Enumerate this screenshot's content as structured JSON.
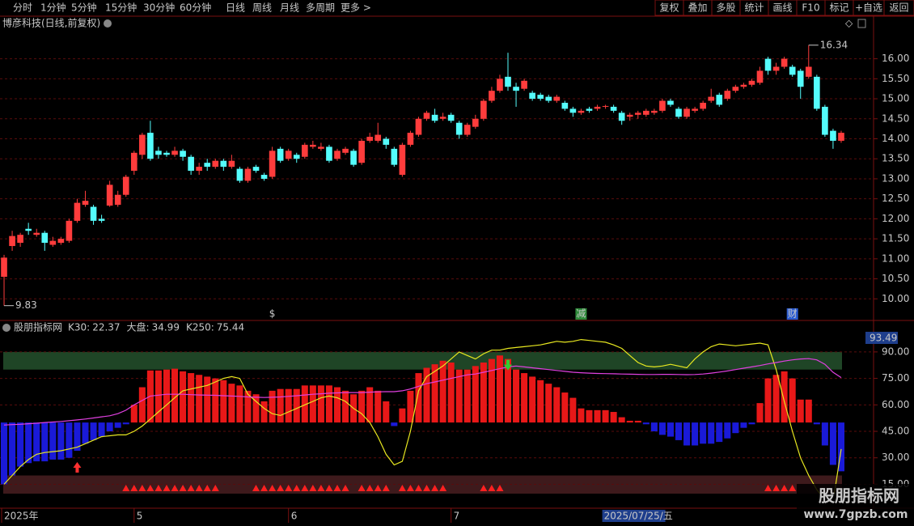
{
  "toolbar": {
    "left": [
      "分时",
      "1分钟",
      "5分钟",
      "15分钟",
      "30分钟",
      "60分钟",
      "日线",
      "周线",
      "月线",
      "多周期",
      "更多 >"
    ],
    "selected_index": 6,
    "right": [
      "复权",
      "叠加",
      "多股",
      "统计",
      "画线",
      "F10",
      "标记",
      "+自选",
      "返回"
    ]
  },
  "watermark": {
    "title": "股朋指标网",
    "url": "www.7gpzb.com"
  },
  "chart_data": [
    {
      "type": "candlestick",
      "title": "博彦科技(日线,前复权)",
      "up_color": "#ff3c3c",
      "down_color": "#54fcfc",
      "categories": [
        "2025年",
        null,
        null,
        null,
        null,
        null,
        null,
        null,
        null,
        null,
        null,
        null,
        null,
        null,
        null,
        null,
        "5",
        null,
        null,
        null,
        null,
        null,
        null,
        null,
        null,
        null,
        null,
        null,
        null,
        null,
        null,
        null,
        null,
        null,
        null,
        "6",
        null,
        null,
        null,
        null,
        null,
        null,
        null,
        null,
        null,
        null,
        null,
        null,
        null,
        null,
        null,
        null,
        null,
        null,
        null,
        "7",
        null,
        null,
        null,
        null,
        null,
        null,
        null,
        null,
        null,
        null,
        null,
        null,
        null,
        null,
        null,
        null,
        null,
        null,
        null,
        null,
        null,
        null,
        null,
        null,
        null,
        null,
        null,
        null,
        null,
        null,
        null,
        null,
        null,
        null,
        null,
        null,
        null,
        null,
        null,
        null,
        null,
        null,
        null,
        null,
        null,
        null,
        null,
        null
      ],
      "open": [
        10.55,
        11.32,
        11.4,
        11.75,
        11.6,
        11.65,
        11.35,
        11.4,
        11.45,
        11.95,
        12.35,
        12.3,
        12.0,
        12.33,
        12.35,
        12.6,
        13.2,
        13.6,
        14.15,
        13.7,
        13.65,
        13.6,
        13.7,
        13.55,
        13.2,
        13.4,
        13.3,
        13.45,
        13.3,
        13.25,
        12.95,
        13.3,
        13.1,
        13.05,
        13.75,
        13.5,
        13.6,
        13.55,
        13.8,
        13.75,
        13.8,
        13.5,
        13.65,
        13.7,
        13.4,
        13.95,
        13.95,
        14.0,
        13.75,
        13.1,
        13.85,
        14.1,
        14.5,
        14.6,
        14.5,
        14.6,
        14.4,
        14.1,
        14.3,
        14.5,
        14.95,
        15.2,
        15.55,
        15.3,
        15.25,
        15.15,
        15.1,
        15.05,
        14.95,
        14.9,
        14.75,
        14.65,
        14.75,
        14.75,
        14.8,
        14.8,
        14.65,
        14.55,
        14.6,
        14.6,
        14.65,
        14.7,
        14.95,
        14.75,
        14.55,
        14.7,
        14.75,
        14.95,
        15.1,
        15.0,
        15.2,
        15.3,
        15.35,
        15.4,
        16.0,
        15.7,
        15.8,
        15.8,
        15.7,
        15.55,
        15.55,
        14.8,
        14.2,
        13.95
      ],
      "close": [
        11.03,
        11.57,
        11.6,
        11.7,
        11.65,
        11.4,
        11.45,
        11.5,
        11.95,
        12.4,
        12.45,
        11.95,
        11.95,
        12.85,
        12.6,
        13.05,
        13.65,
        14.1,
        13.5,
        13.6,
        13.6,
        13.7,
        13.55,
        13.2,
        13.3,
        13.3,
        13.45,
        13.3,
        13.45,
        12.95,
        13.25,
        13.2,
        13.0,
        13.7,
        13.45,
        13.7,
        13.5,
        13.85,
        13.85,
        13.8,
        13.45,
        13.7,
        13.75,
        13.35,
        13.95,
        14.05,
        14.1,
        13.85,
        13.35,
        13.85,
        14.15,
        14.5,
        14.65,
        14.45,
        14.55,
        14.45,
        14.1,
        14.35,
        14.5,
        14.95,
        15.2,
        15.5,
        15.3,
        15.2,
        15.45,
        15.0,
        15.0,
        14.95,
        15.05,
        14.75,
        14.65,
        14.7,
        14.7,
        14.8,
        14.82,
        14.7,
        14.45,
        14.6,
        14.65,
        14.7,
        14.7,
        14.95,
        14.85,
        14.55,
        14.75,
        14.75,
        14.9,
        15.05,
        14.85,
        15.2,
        15.3,
        15.35,
        15.45,
        15.7,
        15.7,
        15.8,
        16.0,
        15.6,
        15.3,
        15.8,
        14.75,
        14.1,
        13.95,
        14.15
      ],
      "high": [
        11.1,
        11.7,
        11.65,
        11.9,
        11.75,
        11.7,
        11.55,
        11.55,
        12.0,
        12.5,
        12.7,
        12.35,
        12.1,
        12.95,
        12.7,
        13.1,
        13.7,
        14.15,
        14.45,
        13.8,
        13.7,
        13.8,
        13.75,
        13.6,
        13.4,
        13.5,
        13.5,
        13.5,
        13.6,
        13.3,
        13.3,
        13.35,
        13.15,
        13.8,
        13.8,
        13.75,
        13.65,
        13.9,
        13.95,
        13.9,
        13.85,
        13.75,
        13.8,
        13.75,
        14.0,
        14.15,
        14.4,
        14.05,
        13.8,
        13.9,
        14.2,
        14.55,
        14.7,
        14.75,
        14.65,
        14.65,
        14.45,
        14.4,
        14.6,
        15.0,
        15.3,
        15.6,
        16.15,
        15.4,
        15.5,
        15.2,
        15.15,
        15.1,
        15.1,
        14.95,
        14.8,
        14.75,
        14.8,
        14.85,
        14.85,
        14.85,
        14.7,
        14.65,
        14.7,
        14.75,
        14.75,
        15.0,
        15.0,
        14.8,
        14.8,
        14.8,
        14.95,
        15.25,
        15.15,
        15.25,
        15.35,
        15.4,
        15.5,
        15.8,
        16.05,
        15.9,
        16.05,
        15.85,
        15.75,
        16.34,
        15.6,
        14.85,
        14.25,
        14.2
      ],
      "low": [
        9.83,
        11.2,
        11.3,
        11.6,
        11.55,
        11.2,
        11.3,
        11.35,
        11.4,
        11.9,
        12.3,
        11.85,
        11.9,
        12.3,
        12.3,
        12.55,
        13.1,
        13.5,
        13.45,
        13.5,
        13.55,
        13.55,
        13.45,
        13.1,
        13.1,
        13.2,
        13.25,
        13.2,
        13.25,
        12.9,
        12.9,
        13.15,
        12.95,
        13.0,
        13.4,
        13.45,
        13.4,
        13.5,
        13.75,
        13.7,
        13.4,
        13.45,
        13.6,
        13.3,
        13.35,
        13.9,
        13.9,
        13.75,
        13.3,
        13.05,
        13.8,
        14.05,
        14.45,
        14.4,
        14.45,
        14.4,
        14.0,
        14.05,
        14.25,
        14.45,
        14.9,
        15.15,
        15.2,
        14.8,
        15.2,
        14.95,
        14.95,
        14.9,
        14.9,
        14.7,
        14.55,
        14.6,
        14.65,
        14.7,
        14.75,
        14.65,
        14.35,
        14.45,
        14.5,
        14.55,
        14.6,
        14.65,
        14.8,
        14.5,
        14.5,
        14.65,
        14.7,
        14.9,
        14.8,
        14.95,
        15.15,
        15.25,
        15.3,
        15.35,
        15.6,
        15.6,
        15.75,
        15.55,
        15.0,
        15.5,
        14.7,
        14.05,
        13.75,
        13.9
      ],
      "ylim": [
        9.48,
        16.7
      ],
      "yticks": [
        {
          "value": 10,
          "label": "10.00"
        },
        {
          "value": 10.5,
          "label": "10.50"
        },
        {
          "value": 11,
          "label": "11.00"
        },
        {
          "value": 11.5,
          "label": "11.50"
        },
        {
          "value": 12,
          "label": "12.00"
        },
        {
          "value": 12.5,
          "label": "12.50"
        },
        {
          "value": 13,
          "label": "13.00"
        },
        {
          "value": 13.5,
          "label": "13.50"
        },
        {
          "value": 14,
          "label": "14.00"
        },
        {
          "value": 14.5,
          "label": "14.50"
        },
        {
          "value": 15,
          "label": "15.00"
        },
        {
          "value": 15.5,
          "label": "15.50"
        },
        {
          "value": 16,
          "label": "16.00"
        }
      ],
      "grid": true,
      "extremes": [
        {
          "index": 99,
          "value": 16.34
        },
        {
          "index": 0,
          "value": 9.83
        }
      ],
      "events": [
        {
          "index": 33,
          "label": "$",
          "color": "#ff3030",
          "box": null
        },
        {
          "index": 71,
          "label": "减",
          "color": "#ffffff",
          "box": "#2e8b3a"
        },
        {
          "index": 97,
          "label": "财",
          "color": "#ffffff",
          "box": "#2a5bd0"
        }
      ],
      "cursor": {
        "index": 74,
        "label": "2025/07/25/五"
      }
    },
    {
      "type": "indicator",
      "title": "股朋指标网",
      "top_label": "93.49",
      "ylim": [
        9.7,
        100.5
      ],
      "yticks": [
        {
          "value": 15,
          "label": "15.00"
        },
        {
          "value": 30,
          "label": "30.00"
        },
        {
          "value": 45,
          "label": "45.00"
        },
        {
          "value": 60,
          "label": "60.00"
        },
        {
          "value": 75,
          "label": "75.00"
        },
        {
          "value": 90,
          "label": "90.00"
        }
      ],
      "grid": true,
      "zones": [
        {
          "from": 80,
          "to": 90,
          "color": "#1f4526"
        },
        {
          "from": 9.7,
          "to": 20,
          "color": "#3e1a1c"
        }
      ],
      "series": [
        {
          "name": "K30:",
          "last_value_label": "22.37",
          "color": "#ffffff",
          "style": "bars",
          "bar_base": 50,
          "up_color": "#e81818",
          "down_color": "#1a1ad8",
          "values": [
            15,
            20,
            25,
            27,
            28,
            28,
            29,
            29,
            30,
            34,
            38,
            40,
            42,
            45,
            47,
            49,
            60,
            70,
            79.5,
            79.5,
            80,
            80.5,
            79,
            78,
            77,
            76,
            75,
            74,
            72,
            71,
            68,
            66,
            62,
            68,
            69,
            69,
            69,
            71,
            71,
            71,
            71,
            70,
            68,
            66,
            68,
            70,
            68,
            62,
            48,
            58,
            68,
            78,
            81,
            83,
            85,
            84,
            80,
            80,
            82,
            84,
            86,
            88,
            86,
            80,
            78,
            76,
            74,
            72,
            70,
            67,
            64,
            58,
            57,
            57,
            57,
            56,
            53,
            51,
            51,
            49,
            45,
            43,
            42,
            40,
            37,
            37,
            38,
            38,
            39,
            41,
            44,
            47,
            49,
            61,
            75,
            77,
            79,
            75,
            63,
            63,
            49,
            37,
            26,
            22.37
          ]
        },
        {
          "name": "大盘:",
          "last_value_label": "34.99",
          "color": "#e8e820",
          "style": "line",
          "values": [
            15,
            20,
            25,
            29,
            32,
            33,
            33.5,
            34,
            35,
            36,
            38,
            40,
            42,
            42.5,
            43,
            43,
            45,
            48,
            52,
            56,
            60,
            64,
            68,
            69,
            70,
            71,
            73,
            75,
            76,
            75,
            66,
            62,
            58,
            55,
            54,
            56,
            58,
            60,
            62,
            64,
            65,
            64,
            62,
            58,
            55,
            50,
            42,
            32,
            26,
            28,
            45,
            68,
            76,
            79,
            82,
            86,
            90,
            88,
            86,
            89,
            91,
            91,
            92,
            92.5,
            93,
            93.5,
            94,
            95,
            96,
            95.5,
            96,
            97,
            96.5,
            96,
            95.5,
            94,
            92,
            88,
            84,
            82,
            81.5,
            82,
            83,
            82,
            81,
            86,
            90,
            93,
            94.5,
            94,
            93.5,
            94,
            94.5,
            95,
            94,
            80,
            62,
            45,
            30,
            20,
            12,
            6,
            5,
            34.99
          ]
        },
        {
          "name": "K250:",
          "last_value_label": "75.44",
          "color": "#e040e0",
          "style": "line",
          "values": [
            48.6,
            48.8,
            49,
            49.3,
            49.6,
            50,
            50.3,
            50.6,
            51,
            51.5,
            52,
            52.6,
            53.2,
            53.8,
            55,
            57,
            60,
            62.5,
            65,
            65.5,
            66,
            66,
            66,
            65.8,
            65.6,
            65.5,
            65.4,
            65.2,
            65,
            64.8,
            64.5,
            64.3,
            64.2,
            64.3,
            64.5,
            64.8,
            65.2,
            65.6,
            66,
            66.3,
            66.6,
            66.8,
            67,
            67,
            67,
            67.2,
            67.4,
            67.5,
            67.5,
            68,
            69,
            70.5,
            72,
            73,
            74,
            75,
            76,
            77,
            77.5,
            78.5,
            79.5,
            80.5,
            81.5,
            82,
            81.5,
            81,
            80.5,
            80,
            79.5,
            79,
            78.5,
            78.2,
            78,
            77.8,
            77.7,
            77.6,
            77.5,
            77.4,
            77.3,
            77.2,
            77.2,
            77.3,
            77.3,
            77.2,
            77.1,
            77.2,
            77.5,
            78,
            78.6,
            79.2,
            80,
            80.8,
            81.5,
            82.3,
            83.2,
            84,
            84.8,
            85.5,
            86,
            86.2,
            85.5,
            83,
            78.5,
            75.44
          ]
        }
      ],
      "signal_indices": [
        15,
        16,
        17,
        18,
        19,
        20,
        21,
        22,
        23,
        24,
        25,
        26,
        31,
        32,
        33,
        34,
        35,
        36,
        37,
        38,
        39,
        40,
        41,
        42,
        44,
        45,
        46,
        47,
        49,
        50,
        51,
        52,
        53,
        54,
        59,
        60,
        61,
        94,
        95,
        96,
        97
      ],
      "up_arrow_index": 9,
      "down_arrow_index": 62
    }
  ]
}
